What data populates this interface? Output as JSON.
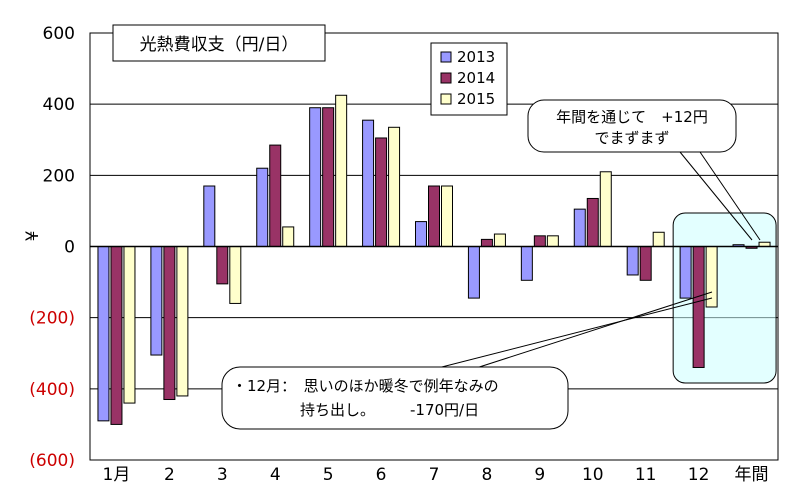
{
  "chart_data": {
    "type": "bar",
    "title": "光熱費収支（円/日）",
    "ylabel": "¥",
    "ylim": [
      -600,
      600
    ],
    "yticks": [
      600,
      400,
      200,
      0,
      -200,
      -400,
      -600
    ],
    "ytick_labels": [
      "600",
      "400",
      "200",
      "0",
      "(200)",
      "(400)",
      "(600)"
    ],
    "categories": [
      "1月",
      "2",
      "3",
      "4",
      "5",
      "6",
      "7",
      "8",
      "9",
      "10",
      "11",
      "12",
      "年間"
    ],
    "series": [
      {
        "name": "2013",
        "values": [
          -490,
          -305,
          170,
          220,
          390,
          355,
          70,
          -145,
          -95,
          105,
          -80,
          -145,
          5
        ]
      },
      {
        "name": "2014",
        "values": [
          -500,
          -430,
          -105,
          285,
          390,
          305,
          170,
          20,
          30,
          135,
          -95,
          -340,
          -5
        ]
      },
      {
        "name": "2015",
        "values": [
          -440,
          -420,
          -160,
          55,
          425,
          335,
          170,
          35,
          30,
          210,
          40,
          -170,
          12
        ]
      }
    ],
    "grid": true,
    "legend_position": "top-center",
    "annotations": [
      {
        "lines": [
          "年間を通じて　+12円",
          "でまずまず"
        ]
      },
      {
        "lines": [
          "・12月：　思いのほか暖冬で例年なみの",
          "持ち出し。"
        ],
        "highlight": "-170円/日"
      }
    ]
  },
  "colors": {
    "series": [
      "#9999ff",
      "#993366",
      "#ffffcc"
    ],
    "negative_tick": "#cc0000",
    "highlight_text": "#cc3300",
    "highlight_box": "#ccffff"
  }
}
